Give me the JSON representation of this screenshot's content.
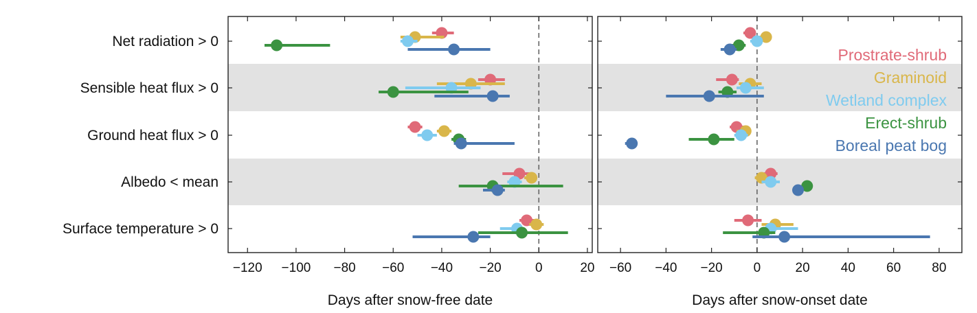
{
  "chart_data": {
    "type": "scatter",
    "subtype": "dot-with-horizontal-error-bars",
    "categories": [
      "Net radiation > 0",
      "Sensible heat flux > 0",
      "Ground heat flux > 0",
      "Albedo < mean",
      "Surface temperature > 0"
    ],
    "legend": {
      "placement": "right panel, top-right",
      "entries": [
        {
          "name": "Prostrate-shrub",
          "color": "#e06a78"
        },
        {
          "name": "Graminoid",
          "color": "#d9b64a"
        },
        {
          "name": "Wetland complex",
          "color": "#7fcbef"
        },
        {
          "name": "Erect-shrub",
          "color": "#3b9341"
        },
        {
          "name": "Boreal peat bog",
          "color": "#4a77b0"
        }
      ]
    },
    "panels": [
      {
        "xlabel": "Days after snow-free date",
        "xlim": [
          -128,
          22
        ],
        "xticks": [
          -120,
          -100,
          -80,
          -60,
          -40,
          -20,
          0,
          20
        ],
        "zero_line": true,
        "series": [
          {
            "name": "Prostrate-shrub",
            "points": [
              [
                -40,
                -44,
                -35
              ],
              [
                -20,
                -25,
                -14
              ],
              [
                -51,
                -54,
                -48
              ],
              [
                -8,
                -15,
                -3
              ],
              [
                -5,
                -8,
                -2
              ]
            ]
          },
          {
            "name": "Graminoid",
            "points": [
              [
                -51,
                -57,
                -39
              ],
              [
                -28,
                -42,
                -14
              ],
              [
                -39,
                -42,
                -36
              ],
              [
                -3,
                -6,
                -1
              ],
              [
                -1,
                -4,
                2
              ]
            ]
          },
          {
            "name": "Wetland complex",
            "points": [
              [
                -54,
                -57,
                -50
              ],
              [
                -36,
                -55,
                -24
              ],
              [
                -46,
                -50,
                -42
              ],
              [
                -10,
                -13,
                -7
              ],
              [
                -9,
                -16,
                -6
              ]
            ]
          },
          {
            "name": "Erect-shrub",
            "points": [
              [
                -108,
                -113,
                -86
              ],
              [
                -60,
                -66,
                -29
              ],
              [
                -33,
                -36,
                -30
              ],
              [
                -19,
                -33,
                10
              ],
              [
                -7,
                -25,
                12
              ]
            ]
          },
          {
            "name": "Boreal peat bog",
            "points": [
              [
                -35,
                -54,
                -20
              ],
              [
                -19,
                -43,
                -12
              ],
              [
                -32,
                -35,
                -10
              ],
              [
                -17,
                -23,
                -14
              ],
              [
                -27,
                -52,
                -20
              ]
            ]
          }
        ]
      },
      {
        "xlabel": "Days after snow-onset date",
        "xlim": [
          -70,
          90
        ],
        "xticks": [
          -60,
          -40,
          -20,
          0,
          20,
          40,
          60,
          80
        ],
        "zero_line": true,
        "series": [
          {
            "name": "Prostrate-shrub",
            "points": [
              [
                -3,
                -6,
                -1
              ],
              [
                -11,
                -18,
                -8
              ],
              [
                -9,
                -12,
                -4
              ],
              [
                6,
                3,
                9
              ],
              [
                -4,
                -10,
                2
              ]
            ]
          },
          {
            "name": "Graminoid",
            "points": [
              [
                4,
                1,
                6
              ],
              [
                -3,
                -8,
                2
              ],
              [
                -5,
                -9,
                -3
              ],
              [
                2,
                -1,
                4
              ],
              [
                8,
                2,
                16
              ]
            ]
          },
          {
            "name": "Wetland complex",
            "points": [
              [
                0,
                -3,
                2
              ],
              [
                -5,
                -9,
                3
              ],
              [
                -7,
                -10,
                -4
              ],
              [
                6,
                2,
                10
              ],
              [
                6,
                2,
                18
              ]
            ]
          },
          {
            "name": "Erect-shrub",
            "points": [
              [
                -8,
                -11,
                -5
              ],
              [
                -13,
                -17,
                -9
              ],
              [
                -19,
                -30,
                -10
              ],
              [
                22,
                20,
                24
              ],
              [
                3,
                -15,
                8
              ]
            ]
          },
          {
            "name": "Boreal peat bog",
            "points": [
              [
                -12,
                -16,
                -9
              ],
              [
                -21,
                -40,
                3
              ],
              [
                -55,
                -58,
                -53
              ],
              [
                18,
                16,
                20
              ],
              [
                12,
                -2,
                76
              ]
            ]
          }
        ]
      }
    ]
  }
}
